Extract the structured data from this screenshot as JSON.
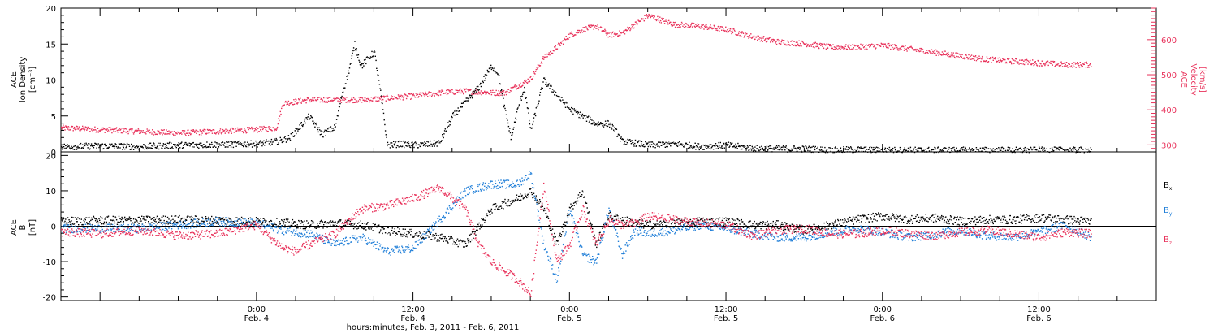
{
  "colors": {
    "density": "#000000",
    "velocity": "#e8315a",
    "bx": "#000000",
    "by": "#1f7ed8",
    "bz": "#e8315a"
  },
  "x_axis": {
    "label": "hours:minutes, Feb.  3, 2011 - Feb.  6, 2011",
    "xlim_hours": [
      -15,
      69
    ],
    "ticks": [
      {
        "hour": 0,
        "time": "0:00",
        "date": "Feb. 4"
      },
      {
        "hour": 12,
        "time": "12:00",
        "date": "Feb. 4"
      },
      {
        "hour": 24,
        "time": "0:00",
        "date": "Feb. 5"
      },
      {
        "hour": 36,
        "time": "12:00",
        "date": "Feb. 5"
      },
      {
        "hour": 48,
        "time": "0:00",
        "date": "Feb. 6"
      },
      {
        "hour": 60,
        "time": "12:00",
        "date": "Feb. 6"
      }
    ]
  },
  "chart_data": [
    {
      "type": "scatter",
      "panel": "top",
      "ylabel_left": [
        "ACE",
        "Ion Density",
        "[cm⁻³]"
      ],
      "ylabel_right": [
        "ACE",
        "Velocity",
        "[km/s]"
      ],
      "ylim_left": [
        0,
        20
      ],
      "ylim_right": [
        280,
        690
      ],
      "yticks_left": [
        "0",
        "5",
        "10",
        "15",
        "20"
      ],
      "yticks_right": [
        "300",
        "400",
        "500",
        "600"
      ],
      "series": [
        {
          "axis": "left",
          "x": [
            -15,
            -12,
            -9,
            -6,
            -3,
            0,
            1.5,
            2.5,
            3.5,
            4,
            5,
            6,
            6.5,
            7,
            7.5,
            8,
            8.5,
            9,
            9.5,
            10,
            11,
            12,
            13,
            14,
            15,
            16,
            17,
            18,
            18.5,
            19,
            19.5,
            20,
            20.5,
            21,
            22,
            23,
            24,
            25,
            26,
            27,
            27.5,
            28,
            29,
            30,
            32,
            34,
            36,
            38,
            40,
            42,
            44,
            46,
            48,
            50,
            52,
            54,
            56,
            58,
            60,
            62,
            64
          ],
          "y": [
            0.8,
            0.9,
            0.8,
            1.0,
            1.1,
            1.2,
            1.5,
            2.0,
            4.0,
            5.0,
            2.5,
            3.5,
            8.0,
            11.0,
            15.0,
            12.0,
            13.0,
            14.0,
            8.0,
            1.0,
            1.2,
            1.0,
            1.1,
            1.3,
            5.0,
            7.0,
            9.0,
            12.0,
            11.0,
            6.0,
            2.0,
            6.0,
            9.0,
            3.0,
            10.0,
            8.0,
            6.0,
            5.0,
            4.0,
            4.0,
            3.0,
            1.5,
            1.3,
            1.0,
            1.2,
            0.8,
            1.0,
            0.6,
            0.5,
            0.5,
            0.3,
            0.4,
            0.3,
            0.3,
            0.3,
            0.3,
            0.3,
            0.3,
            0.3,
            0.3,
            0.3
          ]
        },
        {
          "axis": "right",
          "x": [
            -15,
            -12,
            -9,
            -6,
            -3,
            0,
            1.5,
            2,
            4,
            6,
            8,
            10,
            12,
            14,
            16,
            18,
            19,
            20,
            21,
            22,
            23,
            24,
            25,
            26,
            27,
            28,
            29,
            30,
            32,
            34,
            36,
            38,
            40,
            42,
            44,
            46,
            48,
            50,
            52,
            54,
            56,
            58,
            60,
            62,
            64
          ],
          "y": [
            350,
            345,
            340,
            335,
            340,
            345,
            350,
            420,
            430,
            430,
            430,
            435,
            440,
            450,
            455,
            450,
            450,
            470,
            490,
            550,
            580,
            615,
            630,
            640,
            615,
            620,
            645,
            670,
            645,
            640,
            630,
            610,
            595,
            590,
            580,
            580,
            585,
            575,
            565,
            555,
            545,
            540,
            535,
            530,
            530
          ]
        }
      ]
    },
    {
      "type": "scatter",
      "panel": "bottom",
      "ylabel_left": [
        "ACE",
        "B",
        "[nT]"
      ],
      "ylim": [
        -21,
        21
      ],
      "yticks": [
        "-20",
        "-10",
        "0",
        "10",
        "20"
      ],
      "legend": [
        {
          "text": "B",
          "sub": "x"
        },
        {
          "text": "B",
          "sub": "y"
        },
        {
          "text": "B",
          "sub": "z"
        }
      ],
      "series": [
        {
          "name": "Bx",
          "x": [
            -15,
            -12,
            -9,
            -6,
            -3,
            0,
            2,
            4,
            6,
            8,
            10,
            12,
            14,
            16,
            17,
            18,
            20,
            21,
            22,
            23,
            24,
            25,
            26,
            27,
            28,
            29,
            30,
            32,
            34,
            36,
            38,
            40,
            42,
            44,
            46,
            48,
            50,
            52,
            54,
            56,
            58,
            60,
            62,
            64
          ],
          "y": [
            1.5,
            1.8,
            1.8,
            2.0,
            1.8,
            1.5,
            1.0,
            0.5,
            1.0,
            0.5,
            -1.0,
            -2.0,
            -3.0,
            -5.0,
            0,
            5.0,
            8.0,
            10.0,
            5.0,
            -5.0,
            5.0,
            10.0,
            -5.0,
            3.0,
            2.0,
            1.0,
            0.5,
            1.0,
            1.5,
            1.5,
            0.5,
            0.5,
            -1.0,
            0.5,
            2.0,
            3.0,
            2.0,
            2.5,
            1.5,
            2.0,
            2.0,
            2.5,
            2.0,
            1.5
          ]
        },
        {
          "name": "By",
          "x": [
            -15,
            -12,
            -9,
            -6,
            -3,
            0,
            2,
            4,
            6,
            8,
            10,
            12,
            14,
            16,
            18,
            20,
            21,
            22,
            23,
            24,
            25,
            26,
            27,
            28,
            29,
            30,
            32,
            34,
            36,
            38,
            40,
            42,
            44,
            46,
            48,
            50,
            52,
            54,
            56,
            58,
            60,
            62,
            64
          ],
          "y": [
            -0.5,
            -0.5,
            -0.5,
            0.5,
            1.5,
            1.0,
            -1.0,
            -2.0,
            -5.0,
            -3.0,
            -7.0,
            -6.0,
            2.0,
            10.0,
            12.0,
            12.0,
            15.0,
            -5.0,
            -15.0,
            5.0,
            -8.0,
            -10.0,
            5.0,
            -8.0,
            -1.0,
            -2.0,
            -1.0,
            0.5,
            -0.5,
            -2.0,
            -3.0,
            -3.0,
            -1.5,
            -0.5,
            -1.5,
            -3.0,
            -2.0,
            -1.0,
            -2.5,
            -3.0,
            -1.5,
            0.5,
            -3.0
          ]
        },
        {
          "name": "Bz",
          "x": [
            -15,
            -12,
            -9,
            -6,
            -3,
            0,
            1,
            2,
            3,
            4,
            6,
            8,
            10,
            12,
            14,
            16,
            17,
            18,
            20,
            21,
            22,
            23,
            24,
            25,
            26,
            27,
            28,
            29,
            30,
            32,
            34,
            36,
            38,
            40,
            42,
            44,
            46,
            48,
            50,
            52,
            54,
            56,
            58,
            60,
            62,
            64
          ],
          "y": [
            -1.5,
            -2.0,
            -1.0,
            -2.5,
            -2.0,
            0.5,
            -3.0,
            -6.0,
            -7.0,
            -5.0,
            -2.0,
            5.0,
            6.0,
            8.0,
            11.0,
            5.0,
            -5.0,
            -10.0,
            -15.0,
            -19.0,
            12.0,
            -10.0,
            -5.0,
            5.0,
            -5.0,
            2.0,
            0.5,
            1.0,
            3.0,
            2.0,
            1.0,
            0.5,
            -2.5,
            -1.0,
            -0.5,
            -2.0,
            -2.0,
            -1.0,
            -2.0,
            -2.5,
            -1.5,
            -1.0,
            -2.0,
            -3.0,
            -1.5,
            -2.0
          ]
        }
      ]
    }
  ]
}
